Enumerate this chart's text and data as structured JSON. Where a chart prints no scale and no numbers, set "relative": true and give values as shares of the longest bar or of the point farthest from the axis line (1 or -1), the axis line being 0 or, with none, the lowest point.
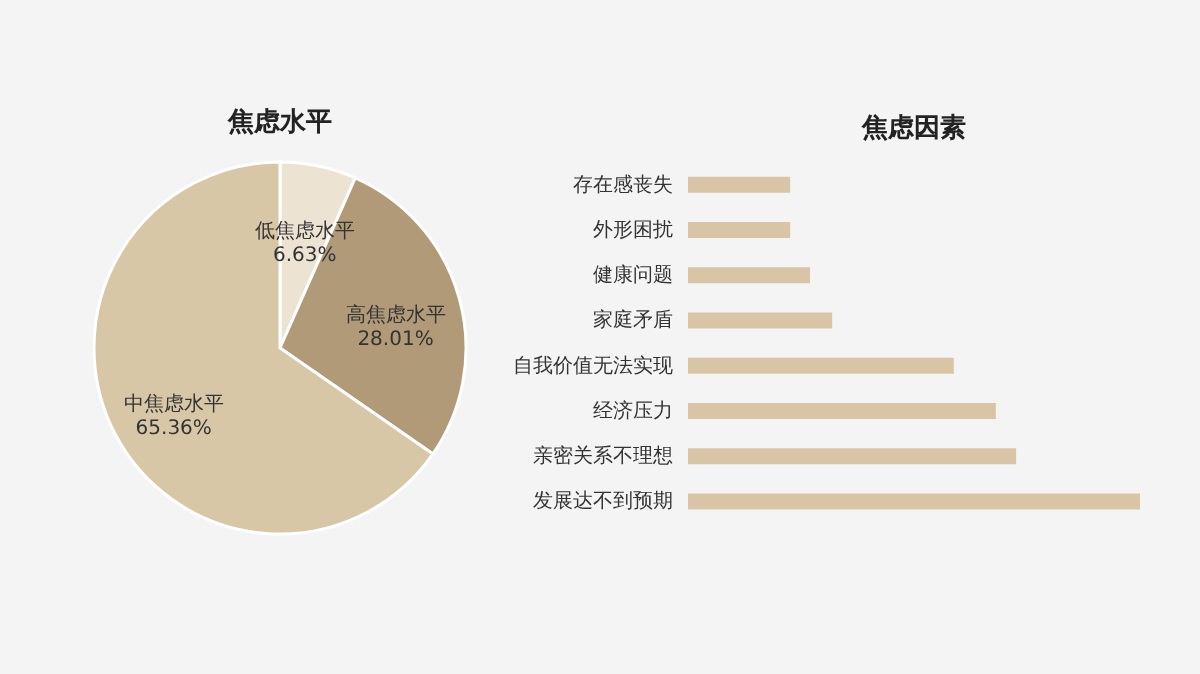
{
  "chart_data": [
    {
      "type": "pie",
      "title": "焦虑水平",
      "categories": [
        "低焦虑水平",
        "高焦虑水平",
        "中焦虑水平"
      ],
      "values": [
        6.63,
        28.01,
        65.36
      ],
      "value_labels": [
        "6.63%",
        "28.01%",
        "65.36%"
      ],
      "colors": [
        "#ece3d2",
        "#b09a78",
        "#d8c7a6"
      ],
      "legend": false
    },
    {
      "type": "bar",
      "orientation": "horizontal",
      "relative": true,
      "title": "焦虑因素",
      "categories": [
        "存在感丧失",
        "外形困扰",
        "健康问题",
        "家庭矛盾",
        "自我价值无法实现",
        "经济压力",
        "亲密关系不理想",
        "发展达不到预期"
      ],
      "values": [
        0.226,
        0.226,
        0.27,
        0.319,
        0.588,
        0.681,
        0.726,
        1
      ],
      "color": "#d9c5a5"
    }
  ]
}
